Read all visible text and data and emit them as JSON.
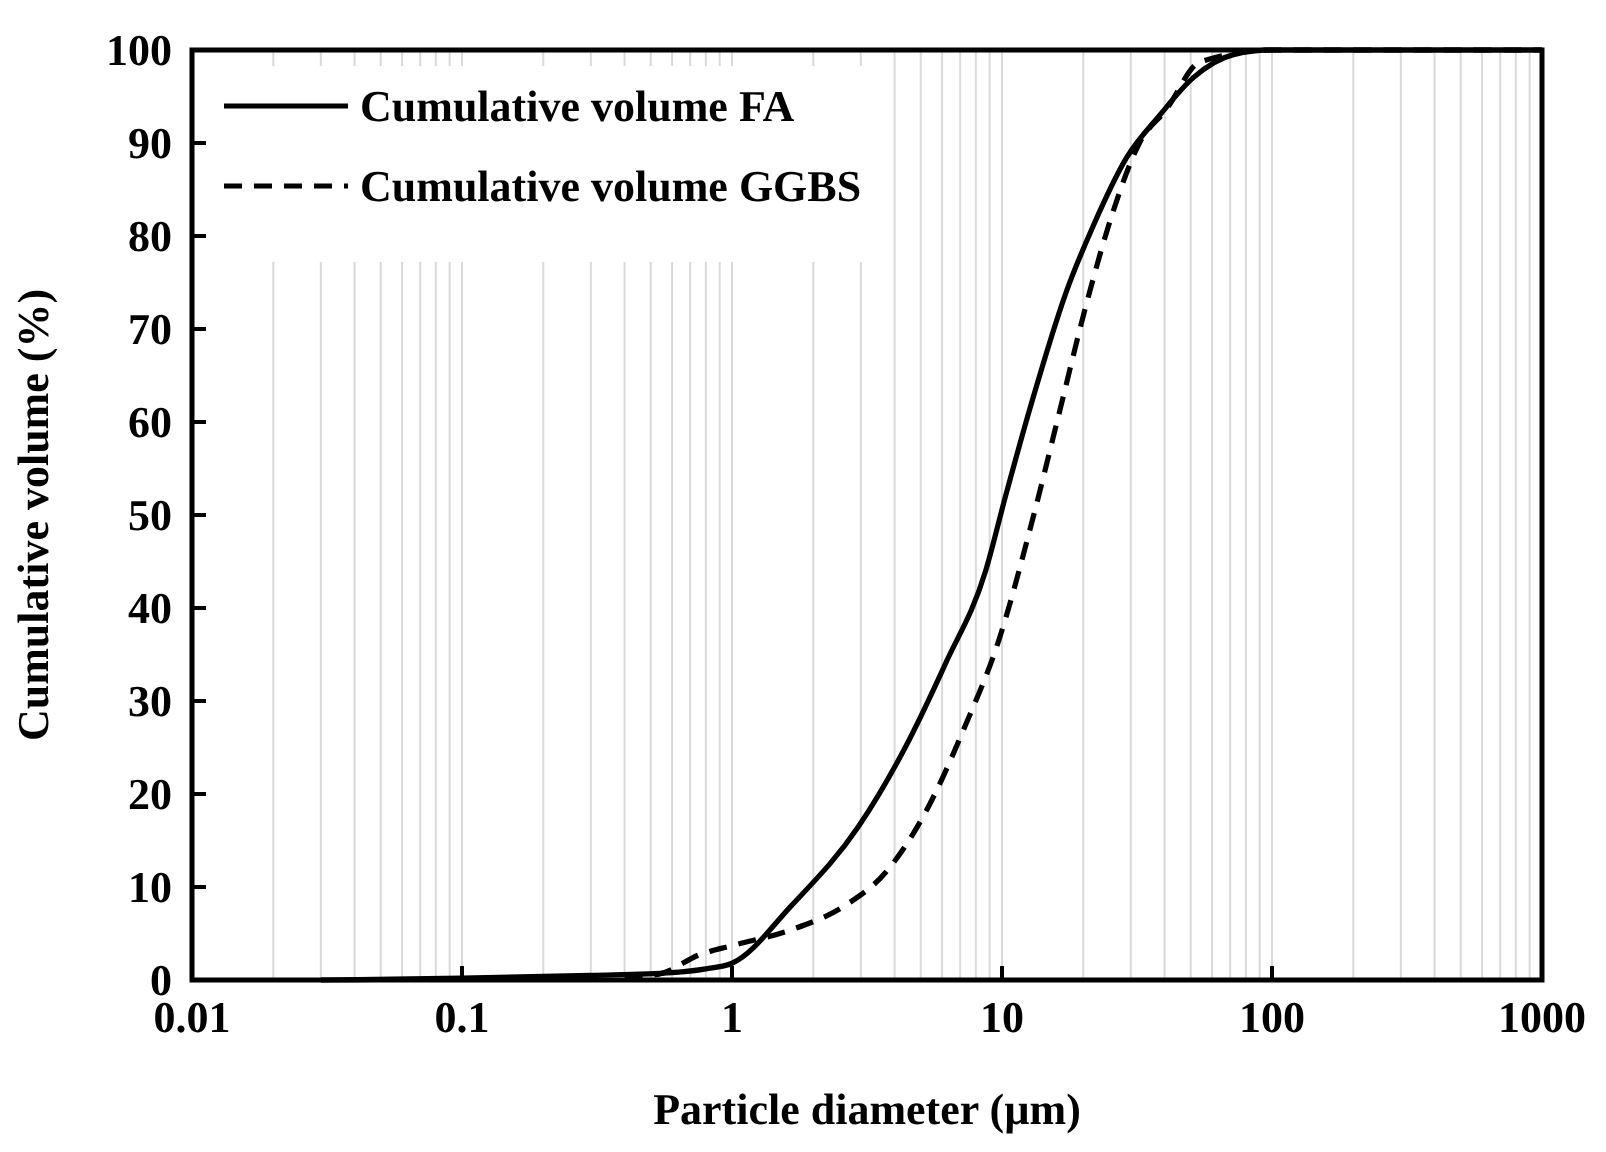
{
  "chart_data": {
    "type": "line",
    "xlabel": "Particle diameter (µm)",
    "ylabel": "Cumulative volume (%)",
    "log": "x",
    "xlim": [
      0.01,
      1000
    ],
    "xticks": [
      0.01,
      0.1,
      1,
      10,
      100,
      1000
    ],
    "ylim": [
      0,
      100
    ],
    "yticks": [
      0,
      10,
      20,
      30,
      40,
      50,
      60,
      70,
      80,
      90,
      100
    ],
    "grid": "x",
    "legend": "top left",
    "series": [
      {
        "name": "Cumulative volume FA",
        "color": "#000000",
        "line_style": "solid",
        "x": [
          0.03,
          0.1,
          0.3,
          0.6,
          0.8,
          1,
          1.66,
          2.94,
          4.38,
          6.17,
          8.7,
          10.3,
          13,
          17.3,
          21.7,
          28.9,
          38.4,
          51,
          72,
          100,
          1000
        ],
        "values": [
          0,
          0.2,
          0.5,
          0.8,
          1.2,
          1.8,
          8,
          16.5,
          25,
          34,
          44,
          52,
          62.5,
          74,
          81,
          88.4,
          93,
          97,
          99.5,
          100,
          100
        ]
      },
      {
        "name": "Cumulative volume GGBS",
        "color": "#000000",
        "line_style": "dashed",
        "x": [
          0.4,
          0.53,
          0.77,
          1,
          1.66,
          2.62,
          3.69,
          5.2,
          7.3,
          9.75,
          13,
          16.3,
          20.5,
          25.7,
          32.3,
          40.6,
          54,
          100,
          1000
        ],
        "values": [
          0.3,
          0.6,
          2.8,
          3.7,
          5.4,
          8,
          11.5,
          18,
          27.3,
          36.6,
          49.6,
          61,
          72.6,
          82.5,
          90,
          93.6,
          98.7,
          100,
          100
        ]
      }
    ]
  }
}
